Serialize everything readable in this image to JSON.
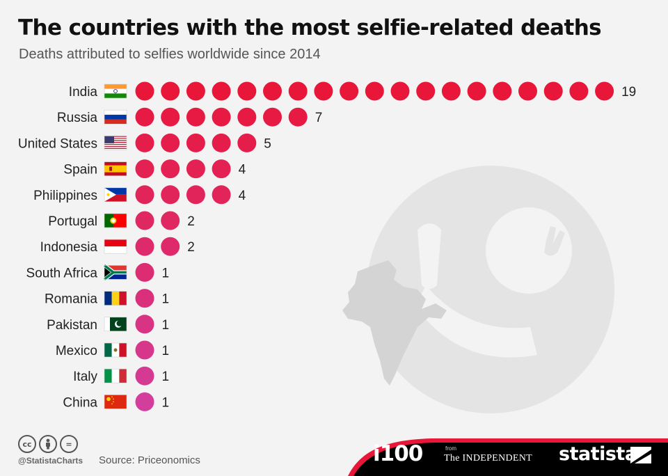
{
  "header": {
    "title": "The countries with the most selfie-related deaths",
    "subtitle": "Deaths attributed to selfies worldwide since 2014"
  },
  "chart_data": {
    "type": "bar",
    "style": "dot-pictogram",
    "categories": [
      "India",
      "Russia",
      "United States",
      "Spain",
      "Philippines",
      "Portugal",
      "Indonesia",
      "South Africa",
      "Romania",
      "Pakistan",
      "Mexico",
      "Italy",
      "China"
    ],
    "values": [
      19,
      7,
      5,
      4,
      4,
      2,
      2,
      1,
      1,
      1,
      1,
      1,
      1
    ],
    "title": "The countries with the most selfie-related deaths",
    "subtitle": "Deaths attributed to selfies worldwide since 2014",
    "xlabel": "",
    "ylabel": "",
    "color_high": "#e8173a",
    "color_low": "#d33d9b"
  },
  "footer": {
    "license_icons": [
      "cc",
      "by",
      "="
    ],
    "handle": "@StatistaCharts",
    "source": "Source: Priceonomics",
    "brand_i100": "i100",
    "brand_from": "from",
    "brand_independent": "The INDEPENDENT",
    "brand_statista": "statista"
  },
  "colors": {
    "background": "#f3f3f3",
    "footer_band": "#000000",
    "footer_accent": "#e8173a",
    "watermark": "#e4e4e4"
  }
}
